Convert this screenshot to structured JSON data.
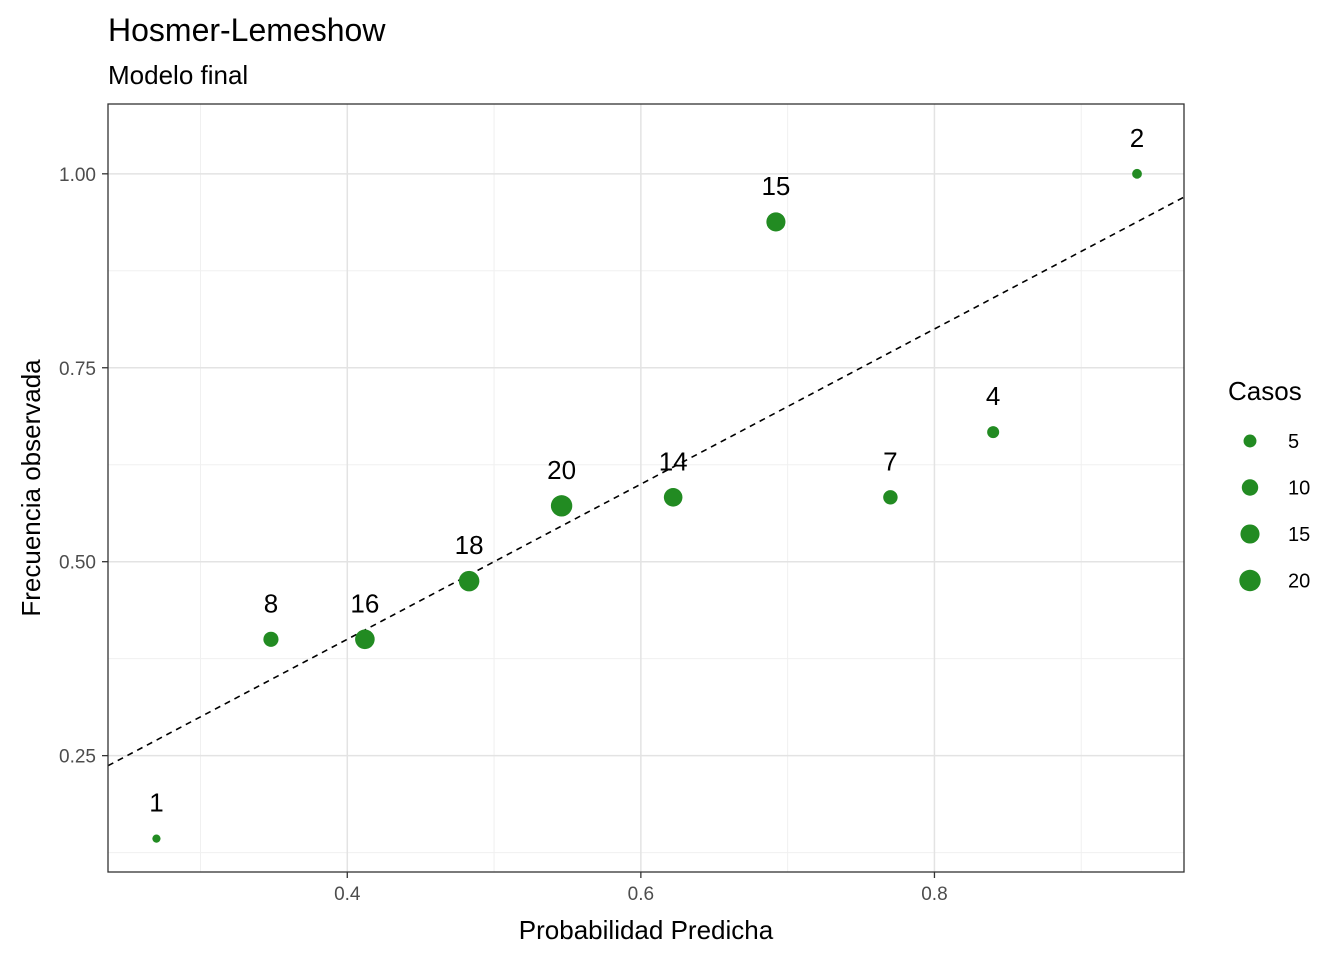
{
  "chart_data": {
    "type": "scatter",
    "title": "Hosmer-Lemeshow",
    "subtitle": "Modelo final",
    "xlabel": "Probabilidad Predicha",
    "ylabel": "Frecuencia observada",
    "xlim": [
      0.237,
      0.97
    ],
    "ylim": [
      0.1,
      1.09
    ],
    "x_ticks": [
      0.4,
      0.6,
      0.8
    ],
    "x_tick_labels": [
      "0.4",
      "0.6",
      "0.8"
    ],
    "y_ticks": [
      0.25,
      0.5,
      0.75,
      1.0
    ],
    "y_tick_labels": [
      "0.25",
      "0.50",
      "0.75",
      "1.00"
    ],
    "grid": true,
    "point_color": "#228B22",
    "reference_line": {
      "style": "dashed",
      "slope": 1,
      "intercept": 0
    },
    "points": [
      {
        "x": 0.27,
        "y": 0.143,
        "casos": 1,
        "label": "1"
      },
      {
        "x": 0.348,
        "y": 0.4,
        "casos": 8,
        "label": "8"
      },
      {
        "x": 0.412,
        "y": 0.4,
        "casos": 16,
        "label": "16"
      },
      {
        "x": 0.483,
        "y": 0.475,
        "casos": 18,
        "label": "18"
      },
      {
        "x": 0.546,
        "y": 0.572,
        "casos": 20,
        "label": "20"
      },
      {
        "x": 0.622,
        "y": 0.583,
        "casos": 14,
        "label": "14"
      },
      {
        "x": 0.692,
        "y": 0.938,
        "casos": 15,
        "label": "15"
      },
      {
        "x": 0.77,
        "y": 0.583,
        "casos": 7,
        "label": "7"
      },
      {
        "x": 0.84,
        "y": 0.667,
        "casos": 4,
        "label": "4"
      },
      {
        "x": 0.938,
        "y": 1.0,
        "casos": 2,
        "label": "2"
      }
    ],
    "legend": {
      "title": "Casos",
      "placement": "right",
      "entries": [
        {
          "value": 5,
          "label": "5"
        },
        {
          "value": 10,
          "label": "10"
        },
        {
          "value": 15,
          "label": "15"
        },
        {
          "value": 20,
          "label": "20"
        }
      ]
    }
  }
}
